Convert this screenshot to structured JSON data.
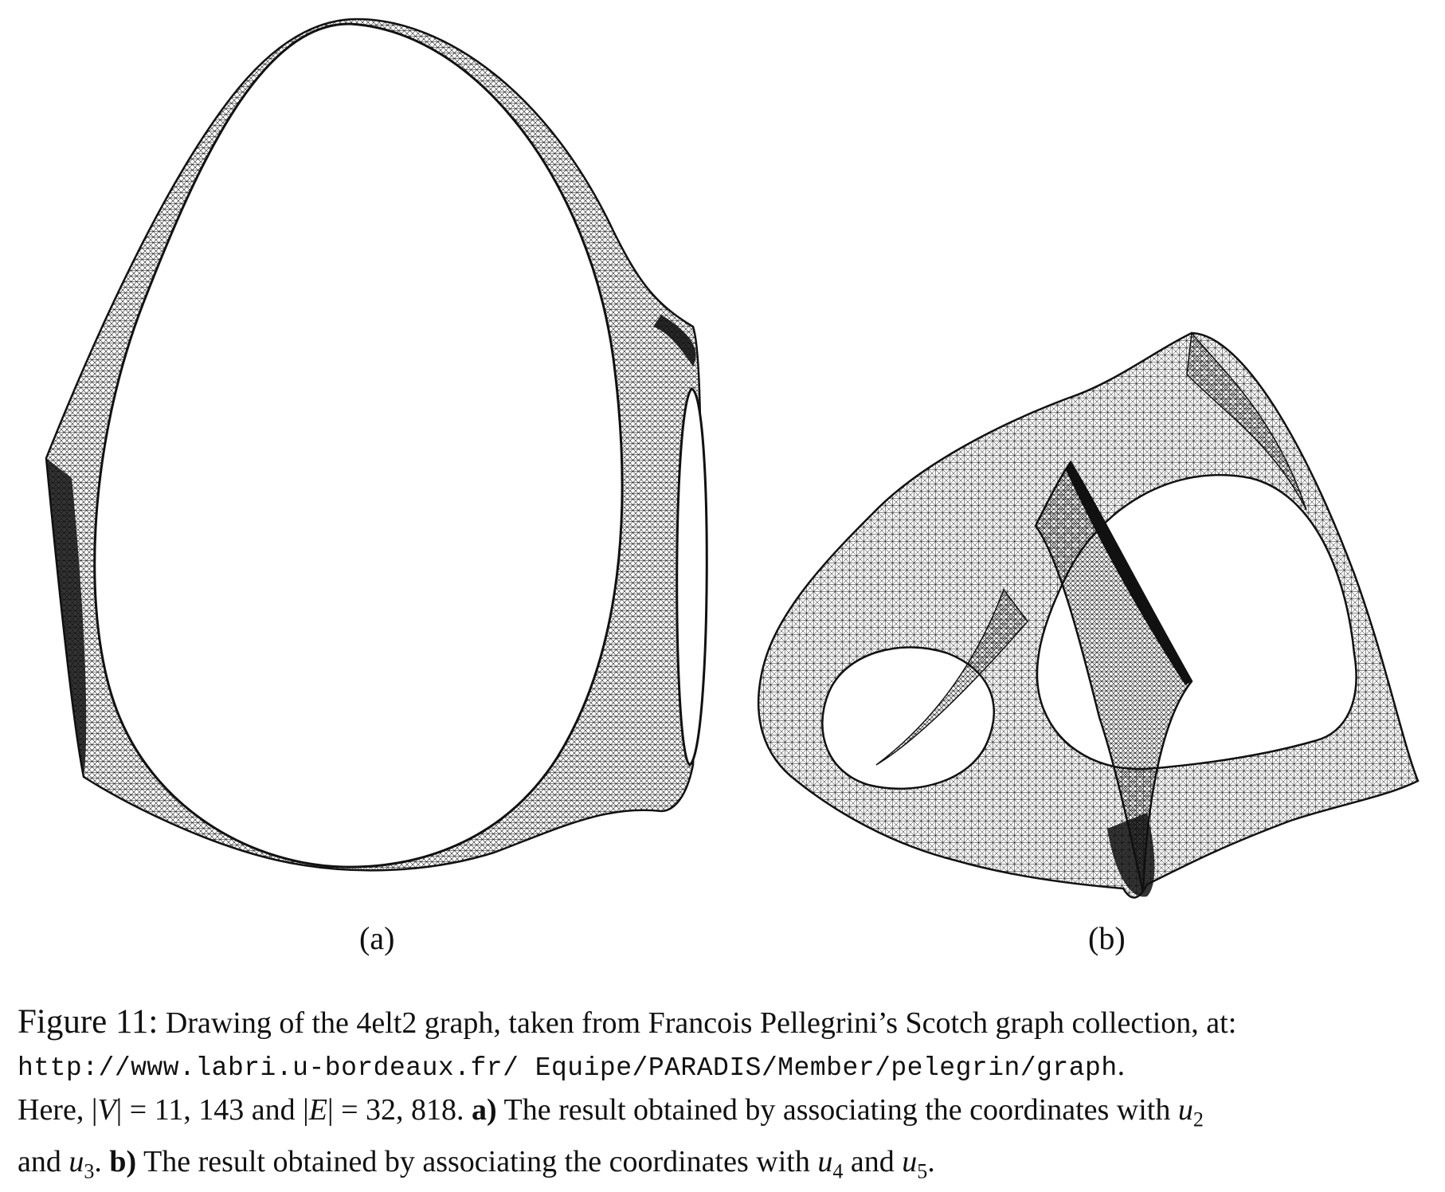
{
  "figure": {
    "panels": [
      {
        "id": "a",
        "label": "(a)",
        "description_icon": "egg-shaped-mesh-drawing"
      },
      {
        "id": "b",
        "label": "(b)",
        "description_icon": "twisted-triangular-mesh-drawing"
      }
    ],
    "mesh_color": "#111111"
  },
  "caption": {
    "figure_number": "Figure 11:",
    "line1_text": " Drawing of the 4elt2 graph, taken from Francois Pellegrini’s Scotch graph collection, at:",
    "url": "http://www.labri.u-bordeaux.fr/ Equipe/PARADIS/Member/pelegrin/graph",
    "url_end": ".",
    "line3_pre": "Here, |",
    "V": "V",
    "eq1": "| = 11, 143 and |",
    "E": "E",
    "eq2": "| = 32, 818. ",
    "a_bold": "a)",
    "a_text": " The result obtained by associating the coordinates with ",
    "u": "u",
    "sub2": "2",
    "line4_pre": "and ",
    "sub3": "3",
    "line4_mid": ". ",
    "b_bold": "b)",
    "b_text": " The result obtained by associating the coordinates with ",
    "sub4": "4",
    "and": " and ",
    "sub5": "5",
    "period": "."
  }
}
